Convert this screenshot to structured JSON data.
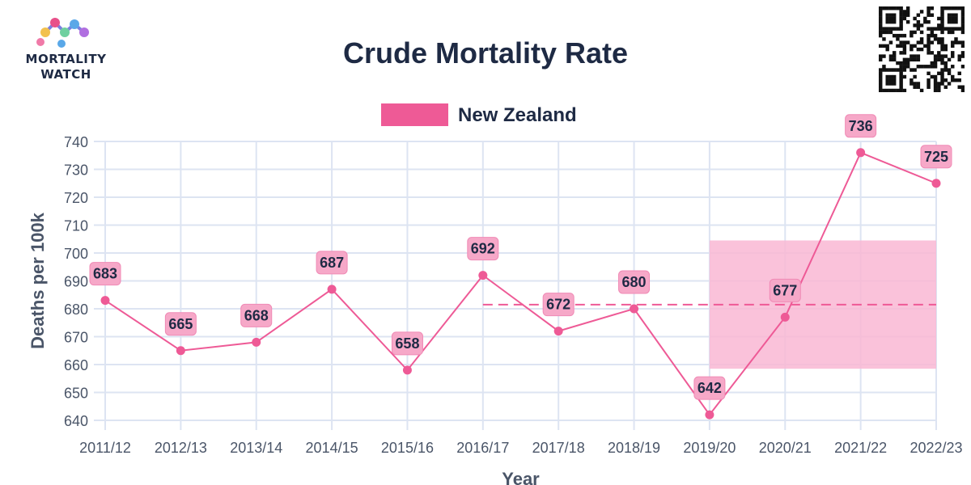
{
  "brand": {
    "line1": "MORTALITY",
    "line2": "WATCH"
  },
  "colors": {
    "series": "#ee5a96",
    "label_bg": "#f6a8c8",
    "band": "#f9b7d3",
    "grid": "#dde4f2",
    "text": "#1e2a44"
  },
  "chart_data": {
    "type": "line",
    "title": "Crude Mortality Rate",
    "xlabel": "Year",
    "ylabel": "Deaths per 100k",
    "categories": [
      "2011/12",
      "2012/13",
      "2013/14",
      "2014/15",
      "2015/16",
      "2016/17",
      "2017/18",
      "2018/19",
      "2019/20",
      "2020/21",
      "2021/22",
      "2022/23"
    ],
    "series": [
      {
        "name": "New Zealand",
        "values": [
          683,
          665,
          668,
          687,
          658,
          692,
          672,
          680,
          642,
          677,
          736,
          725
        ]
      }
    ],
    "ylim": [
      640,
      740
    ],
    "yticks": [
      640,
      650,
      660,
      670,
      680,
      690,
      700,
      710,
      720,
      730,
      740
    ],
    "baseline": {
      "value": 681.5,
      "from": "2016/17",
      "to": "2022/23",
      "style": "dashed"
    },
    "prediction_interval": {
      "low": 658.5,
      "high": 704.5,
      "from": "2019/20",
      "to": "2022/23"
    },
    "grid": true,
    "legend_position": "top-center",
    "data_labels": true
  }
}
